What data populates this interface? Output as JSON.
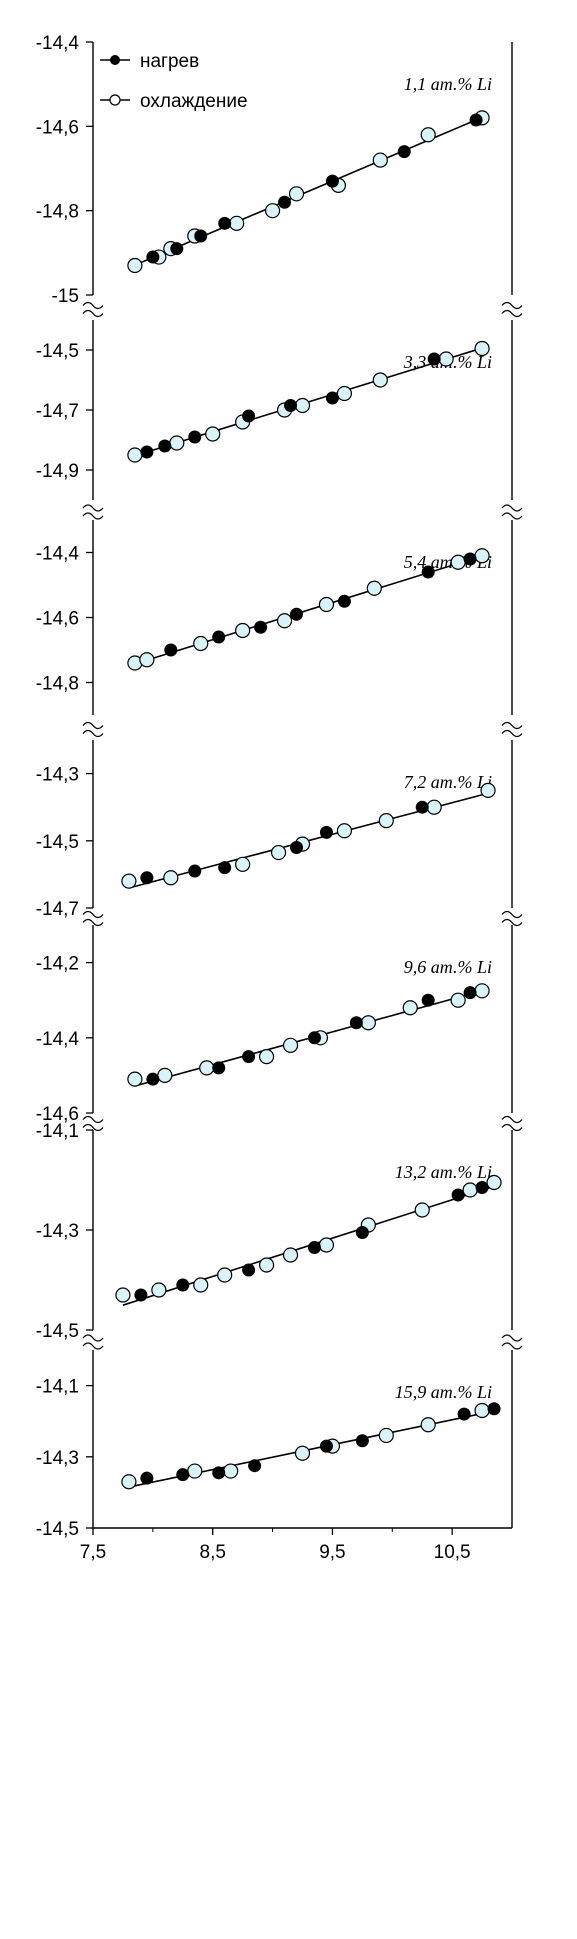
{
  "chart_data": {
    "type": "scatter",
    "x_axis": {
      "ticks": [
        "7,5",
        "8,5",
        "9,5",
        "10,5"
      ],
      "tick_values": [
        7.5,
        8.5,
        9.5,
        10.5
      ],
      "xlim": [
        7.5,
        11.0
      ]
    },
    "legend": {
      "placement": "top-left",
      "entries": [
        {
          "label": "нагрев",
          "marker": "filled-circle",
          "color": "#000000"
        },
        {
          "label": "охлаждение",
          "marker": "open-circle",
          "color": "#d8f4f8"
        }
      ]
    },
    "panels": [
      {
        "label": "1,1 ат.% Li",
        "ylim": [
          -15.0,
          -14.4
        ],
        "y_ticks": [
          "-14,4",
          "-14,6",
          "-14,8",
          "-15"
        ],
        "y_tick_values": [
          -14.4,
          -14.6,
          -14.8,
          -15.0
        ],
        "series": [
          {
            "name": "нагрев",
            "x": [
              8.0,
              8.2,
              8.4,
              8.6,
              9.1,
              9.5,
              10.1,
              10.7
            ],
            "y": [
              -14.91,
              -14.89,
              -14.86,
              -14.83,
              -14.78,
              -14.73,
              -14.66,
              -14.585
            ]
          },
          {
            "name": "охлаждение",
            "x": [
              7.85,
              8.05,
              8.15,
              8.35,
              8.7,
              9.0,
              9.2,
              9.55,
              9.9,
              10.3,
              10.75
            ],
            "y": [
              -14.93,
              -14.91,
              -14.89,
              -14.86,
              -14.83,
              -14.8,
              -14.76,
              -14.74,
              -14.68,
              -14.62,
              -14.58
            ]
          }
        ]
      },
      {
        "label": "3,3 ат.% Li",
        "ylim": [
          -15.0,
          -14.4
        ],
        "y_ticks": [
          "-14,5",
          "-14,7",
          "-14,9"
        ],
        "y_tick_values": [
          -14.5,
          -14.7,
          -14.9
        ],
        "series": [
          {
            "name": "нагрев",
            "x": [
              7.95,
              8.1,
              8.35,
              8.8,
              9.15,
              9.5,
              10.35
            ],
            "y": [
              -14.84,
              -14.82,
              -14.79,
              -14.72,
              -14.685,
              -14.66,
              -14.53
            ]
          },
          {
            "name": "охлаждение",
            "x": [
              7.85,
              8.2,
              8.5,
              8.75,
              9.1,
              9.25,
              9.6,
              9.9,
              10.45,
              10.75
            ],
            "y": [
              -14.85,
              -14.81,
              -14.78,
              -14.74,
              -14.7,
              -14.685,
              -14.645,
              -14.6,
              -14.53,
              -14.495
            ]
          }
        ]
      },
      {
        "label": "5,4 ат.% Li",
        "ylim": [
          -14.9,
          -14.3
        ],
        "y_ticks": [
          "-14,4",
          "-14,6",
          "-14,8"
        ],
        "y_tick_values": [
          -14.4,
          -14.6,
          -14.8
        ],
        "series": [
          {
            "name": "нагрев",
            "x": [
              8.15,
              8.55,
              8.9,
              9.2,
              9.6,
              10.3,
              10.65
            ],
            "y": [
              -14.7,
              -14.66,
              -14.63,
              -14.59,
              -14.55,
              -14.46,
              -14.42
            ]
          },
          {
            "name": "охлаждение",
            "x": [
              7.85,
              7.95,
              8.4,
              8.75,
              9.1,
              9.45,
              9.85,
              10.55,
              10.75
            ],
            "y": [
              -14.74,
              -14.73,
              -14.68,
              -14.64,
              -14.61,
              -14.56,
              -14.51,
              -14.43,
              -14.41
            ]
          }
        ]
      },
      {
        "label": "7,2 ат.% Li",
        "ylim": [
          -14.7,
          -14.2
        ],
        "y_ticks": [
          "-14,3",
          "-14,5",
          "-14,7"
        ],
        "y_tick_values": [
          -14.3,
          -14.5,
          -14.7
        ],
        "series": [
          {
            "name": "нагрев",
            "x": [
              7.95,
              8.35,
              8.6,
              9.2,
              9.45,
              10.25
            ],
            "y": [
              -14.61,
              -14.59,
              -14.58,
              -14.52,
              -14.475,
              -14.4
            ]
          },
          {
            "name": "охлаждение",
            "x": [
              7.8,
              8.15,
              8.75,
              9.05,
              9.25,
              9.6,
              9.95,
              10.35,
              10.8
            ],
            "y": [
              -14.62,
              -14.61,
              -14.57,
              -14.535,
              -14.51,
              -14.47,
              -14.44,
              -14.4,
              -14.35
            ]
          }
        ]
      },
      {
        "label": "9,6 ат.% Li",
        "ylim": [
          -14.6,
          -14.1
        ],
        "y_ticks": [
          "-14,2",
          "-14,4",
          "-14,6"
        ],
        "y_tick_values": [
          -14.2,
          -14.4,
          -14.6
        ],
        "series": [
          {
            "name": "нагрев",
            "x": [
              8.0,
              8.55,
              8.8,
              9.35,
              9.7,
              10.3,
              10.65
            ],
            "y": [
              -14.51,
              -14.48,
              -14.45,
              -14.4,
              -14.36,
              -14.3,
              -14.28
            ]
          },
          {
            "name": "охлаждение",
            "x": [
              7.85,
              8.1,
              8.45,
              8.95,
              9.15,
              9.4,
              9.8,
              10.15,
              10.55,
              10.75
            ],
            "y": [
              -14.51,
              -14.5,
              -14.48,
              -14.45,
              -14.42,
              -14.4,
              -14.36,
              -14.32,
              -14.3,
              -14.275
            ]
          }
        ]
      },
      {
        "label": "13,2 ат.% Li",
        "ylim": [
          -14.5,
          -14.1
        ],
        "y_ticks": [
          "-14,1",
          "-14,3",
          "-14,5"
        ],
        "y_tick_values": [
          -14.1,
          -14.3,
          -14.5
        ],
        "series": [
          {
            "name": "нагрев",
            "x": [
              7.9,
              8.25,
              8.8,
              9.35,
              9.75,
              10.55,
              10.75
            ],
            "y": [
              -14.43,
              -14.41,
              -14.38,
              -14.335,
              -14.305,
              -14.23,
              -14.215
            ]
          },
          {
            "name": "охлаждение",
            "x": [
              7.75,
              8.05,
              8.4,
              8.6,
              8.95,
              9.15,
              9.45,
              9.8,
              10.25,
              10.65,
              10.85
            ],
            "y": [
              -14.43,
              -14.42,
              -14.41,
              -14.39,
              -14.37,
              -14.35,
              -14.33,
              -14.29,
              -14.26,
              -14.22,
              -14.205
            ]
          }
        ]
      },
      {
        "label": "15,9 ат.% Li",
        "ylim": [
          -14.5,
          -14.0
        ],
        "y_ticks": [
          "-14,1",
          "-14,3",
          "-14,5"
        ],
        "y_tick_values": [
          -14.1,
          -14.3,
          -14.5
        ],
        "series": [
          {
            "name": "нагрев",
            "x": [
              7.95,
              8.25,
              8.55,
              8.85,
              9.45,
              9.75,
              10.6,
              10.85
            ],
            "y": [
              -14.36,
              -14.35,
              -14.345,
              -14.325,
              -14.27,
              -14.255,
              -14.18,
              -14.165
            ]
          },
          {
            "name": "охлаждение",
            "x": [
              7.8,
              8.35,
              8.65,
              9.25,
              9.5,
              9.95,
              10.3,
              10.75
            ],
            "y": [
              -14.37,
              -14.34,
              -14.34,
              -14.29,
              -14.27,
              -14.24,
              -14.21,
              -14.17
            ]
          }
        ]
      }
    ]
  }
}
